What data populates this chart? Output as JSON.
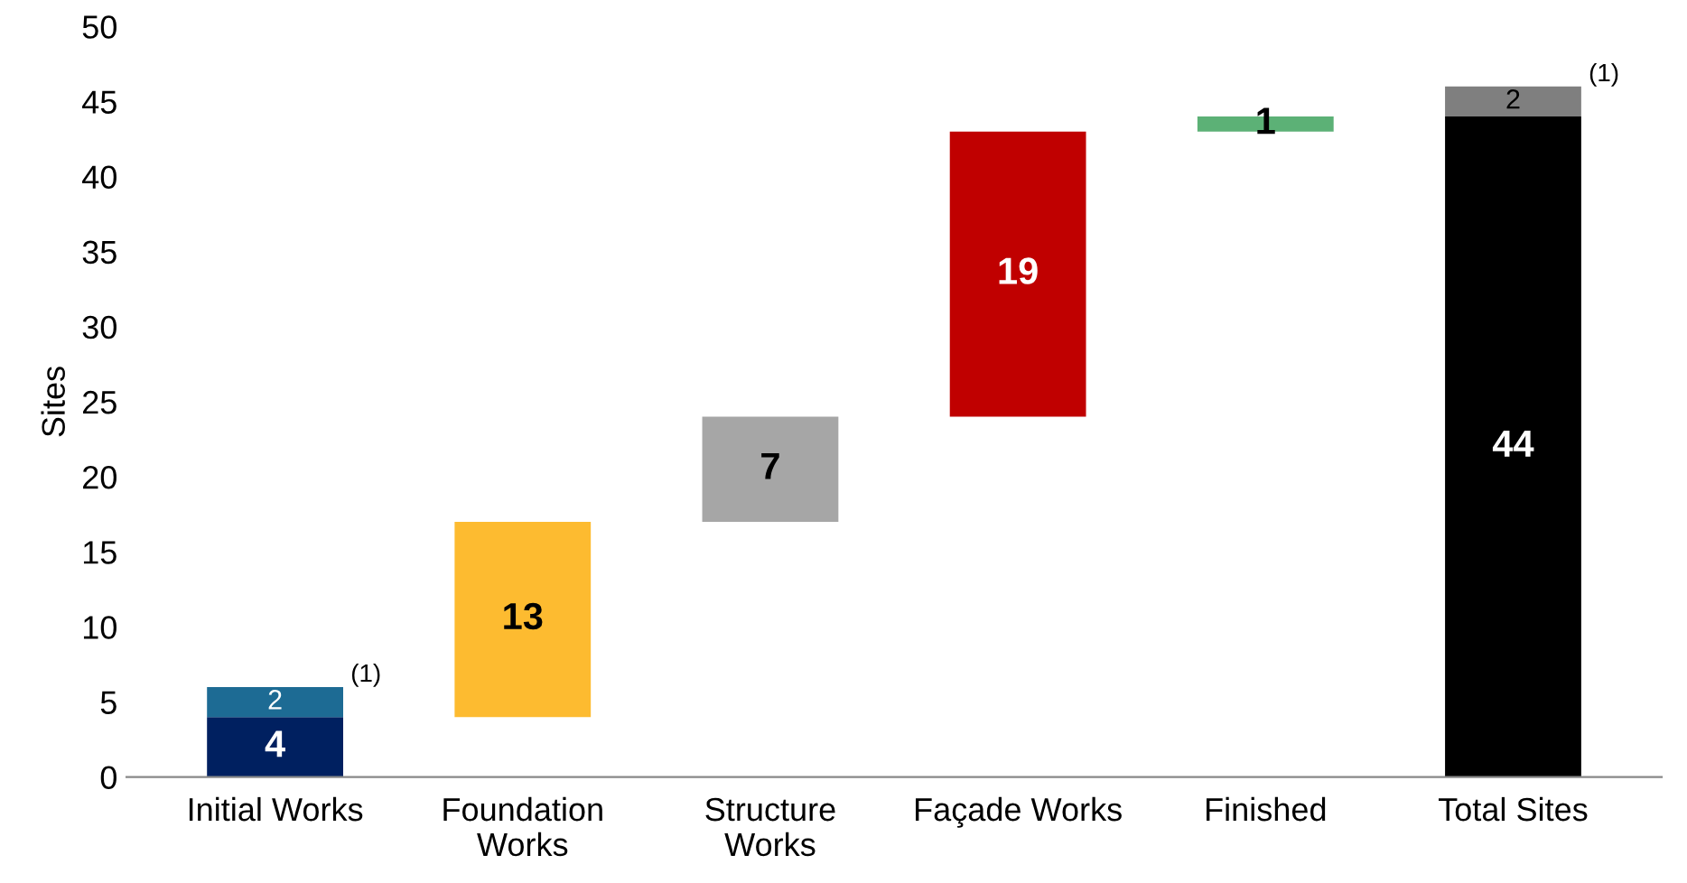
{
  "chart_data": {
    "type": "bar",
    "ylabel": "Sites",
    "categories": [
      "Initial Works",
      "Foundation\nWorks",
      "Structure\nWorks",
      "Façade Works",
      "Finished",
      "Total Sites"
    ],
    "series": [
      {
        "colors": [
          "#002060",
          "#fdbb30",
          "#a6a6a6",
          "#c00000",
          "#5cb176",
          "#000000"
        ],
        "values": [
          4,
          13,
          7,
          19,
          1,
          44
        ],
        "base": [
          0,
          4,
          17,
          24,
          43,
          0
        ]
      },
      {
        "colors": [
          "#1d6b94",
          null,
          null,
          null,
          null,
          "#7f7f7f"
        ],
        "values": [
          2,
          null,
          null,
          null,
          null,
          2
        ],
        "base": [
          4,
          null,
          null,
          null,
          null,
          44
        ]
      }
    ],
    "data_labels": true,
    "annotations": [
      "(1)",
      "(1)"
    ],
    "ylim": [
      0,
      50
    ],
    "yticks": [
      0,
      5,
      10,
      15,
      20,
      25,
      30,
      35,
      40,
      45,
      50
    ],
    "grid": false
  }
}
